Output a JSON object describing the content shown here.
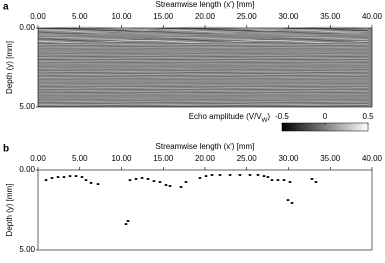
{
  "chart_data": [
    {
      "type": "image",
      "panel_label": "a",
      "title": "Streamwise length (x') [mm]",
      "ylabel": "Depth (y) [mm]",
      "xlim": [
        0,
        40
      ],
      "ylim": [
        0,
        5
      ],
      "xticks": [
        {
          "value": 0,
          "label": "0.00"
        },
        {
          "value": 5,
          "label": "5.00"
        },
        {
          "value": 10,
          "label": "10.00"
        },
        {
          "value": 15,
          "label": "15.00"
        },
        {
          "value": 20,
          "label": "20.00"
        },
        {
          "value": 25,
          "label": "25.00"
        },
        {
          "value": 30,
          "label": "30.00"
        },
        {
          "value": 35,
          "label": "35.00"
        },
        {
          "value": 40,
          "label": "40.00"
        }
      ],
      "yticks": [
        {
          "value": 0,
          "label": "0.00"
        },
        {
          "value": 5,
          "label": "5.00"
        }
      ],
      "colorbar": {
        "label": {
          "text": "Echo amplitude (V/V",
          "sub": "W",
          "tail": ")"
        },
        "lim": [
          -0.5,
          0.5
        ],
        "ticks": [
          -0.5,
          0,
          0.5
        ]
      }
    },
    {
      "type": "scatter",
      "panel_label": "b",
      "title": "Streamwise length (x') [mm]",
      "ylabel": "Depth (y) [mm]",
      "xlim": [
        0,
        40
      ],
      "ylim": [
        0,
        5
      ],
      "color": "#000000",
      "xticks": [
        {
          "value": 0,
          "label": "0.00"
        },
        {
          "value": 5,
          "label": "5.00"
        },
        {
          "value": 10,
          "label": "10.00"
        },
        {
          "value": 15,
          "label": "15.00"
        },
        {
          "value": 20,
          "label": "20.00"
        },
        {
          "value": 25,
          "label": "25.00"
        },
        {
          "value": 30,
          "label": "30.00"
        },
        {
          "value": 35,
          "label": "35.00"
        },
        {
          "value": 40,
          "label": "40.00"
        }
      ],
      "yticks": [
        {
          "value": 0,
          "label": "0.00"
        },
        {
          "value": 5,
          "label": "5.00"
        }
      ],
      "x": [
        0.96,
        1.68,
        2.4,
        3.11,
        3.83,
        4.55,
        5.27,
        5.75,
        6.35,
        7.19,
        11.02,
        11.74,
        12.46,
        13.17,
        13.89,
        14.61,
        15.33,
        15.81,
        10.54,
        10.78,
        17.13,
        17.72,
        19.4,
        20.12,
        20.84,
        21.8,
        23.0,
        24.19,
        25.39,
        26.35,
        27.07,
        27.54,
        28.02,
        28.74,
        29.46,
        30.18,
        29.94,
        30.42,
        32.81,
        33.29
      ],
      "values": [
        0.63,
        0.5,
        0.44,
        0.44,
        0.38,
        0.38,
        0.44,
        0.63,
        0.81,
        0.88,
        0.63,
        0.56,
        0.5,
        0.56,
        0.69,
        0.75,
        0.94,
        1.0,
        3.38,
        3.19,
        1.06,
        0.75,
        0.5,
        0.38,
        0.31,
        0.31,
        0.31,
        0.31,
        0.31,
        0.31,
        0.38,
        0.44,
        0.63,
        0.63,
        0.63,
        0.75,
        1.88,
        2.06,
        0.56,
        0.75
      ]
    }
  ]
}
